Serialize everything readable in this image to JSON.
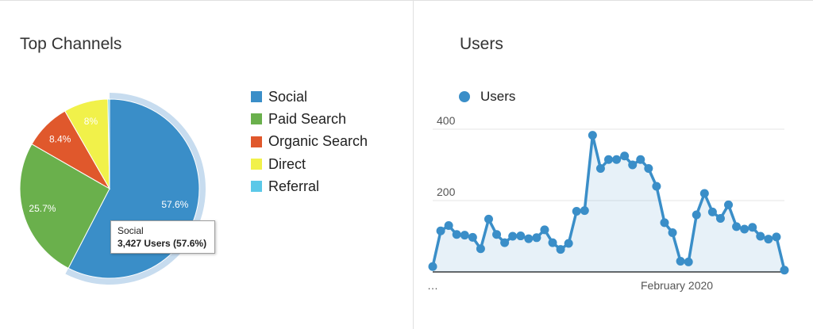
{
  "pie_card": {
    "title": "Top Channels"
  },
  "line_card": {
    "title": "Users"
  },
  "tooltip": {
    "label": "Social",
    "value": "3,427 Users (57.6%)"
  },
  "chart_data": [
    {
      "type": "pie",
      "title": "Top Channels",
      "slices": [
        {
          "label": "Social",
          "value": 57.6,
          "display": "57.6%",
          "color": "#3a8ec8"
        },
        {
          "label": "Paid Search",
          "value": 25.7,
          "display": "25.7%",
          "color": "#6ab04c"
        },
        {
          "label": "Organic Search",
          "value": 8.4,
          "display": "8.4%",
          "color": "#e0582c"
        },
        {
          "label": "Direct",
          "value": 8.0,
          "display": "8%",
          "color": "#f1f14a"
        },
        {
          "label": "Referral",
          "value": 0.3,
          "display": "",
          "color": "#5bc8e8"
        }
      ],
      "highlighted": "Social",
      "legend_position": "right"
    },
    {
      "type": "area",
      "title": "Users",
      "series": [
        {
          "name": "Users",
          "color": "#3a8ec8",
          "values": [
            15,
            115,
            130,
            105,
            103,
            97,
            65,
            148,
            105,
            82,
            100,
            101,
            93,
            96,
            118,
            82,
            63,
            80,
            170,
            172,
            383,
            290,
            315,
            315,
            325,
            300,
            315,
            290,
            240,
            138,
            110,
            30,
            28,
            160,
            220,
            168,
            150,
            188,
            127,
            120,
            125,
            100,
            92,
            98,
            5
          ]
        }
      ],
      "y_ticks": [
        "400",
        "200"
      ],
      "ylim": [
        0,
        400
      ],
      "x_tick_labels": [
        "…",
        "February 2020"
      ],
      "grid": true,
      "legend_position": "top"
    }
  ]
}
